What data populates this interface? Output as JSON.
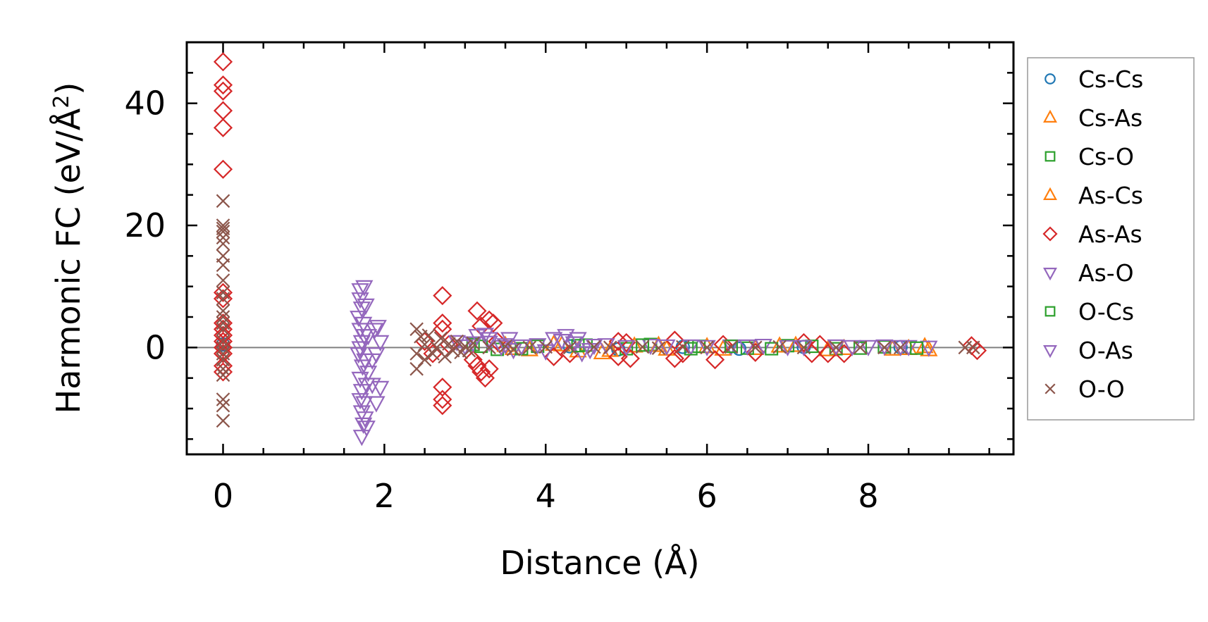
{
  "chart_data": {
    "type": "scatter",
    "title": "",
    "xlabel": "Distance (Å)",
    "ylabel_main": "Harmonic FC (eV/Å",
    "ylabel_sup": "2",
    "ylabel_close": ")",
    "xlim": [
      -0.45,
      9.8
    ],
    "ylim": [
      -17.5,
      50
    ],
    "xticks": [
      0,
      2,
      4,
      6,
      8
    ],
    "xtick_labels": [
      "0",
      "2",
      "4",
      "6",
      "8"
    ],
    "yticks": [
      0,
      20,
      40
    ],
    "ytick_labels": [
      "0",
      "20",
      "40"
    ],
    "x_minor_step": 0.5,
    "y_minor_step": 5,
    "zero_line": true,
    "grid": false,
    "legend_position": "outside-right",
    "series": [
      {
        "name": "Cs-Cs",
        "marker": "circle",
        "color": "#1f77b4",
        "points": [
          [
            0,
            0.5
          ],
          [
            4.3,
            0.2
          ],
          [
            4.9,
            -0.3
          ],
          [
            5.7,
            0.1
          ],
          [
            6.4,
            -0.2
          ],
          [
            7.2,
            0.1
          ],
          [
            8.4,
            0.05
          ]
        ]
      },
      {
        "name": "Cs-As",
        "marker": "triangle-up",
        "color": "#ff7f0e",
        "points": [
          [
            3.5,
            0.3
          ],
          [
            3.8,
            -0.4
          ],
          [
            4.1,
            0.5
          ],
          [
            4.4,
            -0.6
          ],
          [
            4.7,
            -0.9
          ],
          [
            5.1,
            0.2
          ],
          [
            5.5,
            -0.3
          ],
          [
            6.0,
            0.1
          ],
          [
            6.6,
            -0.2
          ],
          [
            7.1,
            0.3
          ],
          [
            7.7,
            -0.2
          ],
          [
            8.3,
            -0.3
          ],
          [
            8.75,
            -0.4
          ]
        ]
      },
      {
        "name": "Cs-O",
        "marker": "square",
        "color": "#2ca02c",
        "points": [
          [
            3.1,
            0.5
          ],
          [
            3.4,
            -0.3
          ],
          [
            3.9,
            0.2
          ],
          [
            4.5,
            0.4
          ],
          [
            5.0,
            -0.2
          ],
          [
            5.3,
            0.5
          ],
          [
            5.9,
            0.2
          ],
          [
            6.5,
            -0.1
          ],
          [
            7.0,
            0.3
          ],
          [
            7.6,
            -0.2
          ],
          [
            8.2,
            0.1
          ]
        ]
      },
      {
        "name": "As-Cs",
        "marker": "triangle-up",
        "color": "#ff7f0e",
        "points": [
          [
            3.6,
            -0.2
          ],
          [
            4.2,
            0.4
          ],
          [
            4.8,
            -0.5
          ],
          [
            5.4,
            0.3
          ],
          [
            6.2,
            -0.3
          ],
          [
            6.9,
            0.2
          ],
          [
            7.5,
            -0.4
          ],
          [
            8.5,
            -0.2
          ],
          [
            8.7,
            0.1
          ]
        ]
      },
      {
        "name": "As-As",
        "marker": "diamond",
        "color": "#d62728",
        "points": [
          [
            0,
            46.8
          ],
          [
            0,
            43
          ],
          [
            0,
            42
          ],
          [
            0,
            38.8
          ],
          [
            0,
            36
          ],
          [
            0,
            29.2
          ],
          [
            0,
            9
          ],
          [
            0,
            8
          ],
          [
            0,
            4
          ],
          [
            0,
            3
          ],
          [
            0,
            2
          ],
          [
            0,
            1
          ],
          [
            0,
            0
          ],
          [
            0,
            -1
          ],
          [
            0,
            -3
          ],
          [
            0,
            -4
          ],
          [
            2.72,
            8.5
          ],
          [
            2.72,
            4
          ],
          [
            2.72,
            3
          ],
          [
            2.72,
            -6.5
          ],
          [
            2.72,
            -8.5
          ],
          [
            2.72,
            -9.5
          ],
          [
            2.5,
            1
          ],
          [
            2.6,
            -1
          ],
          [
            2.8,
            0.5
          ],
          [
            3.15,
            6
          ],
          [
            3.2,
            3.5
          ],
          [
            3.3,
            4.5
          ],
          [
            3.35,
            4
          ],
          [
            3.15,
            -3
          ],
          [
            3.2,
            -4
          ],
          [
            3.25,
            -5
          ],
          [
            3.3,
            -3.5
          ],
          [
            3.1,
            -2
          ],
          [
            3.4,
            1
          ],
          [
            4.1,
            -1.5
          ],
          [
            4.3,
            -1
          ],
          [
            4.9,
            1
          ],
          [
            4.9,
            -1.5
          ],
          [
            5.0,
            0.8
          ],
          [
            5.05,
            -1.8
          ],
          [
            5.6,
            1.2
          ],
          [
            5.6,
            -1.8
          ],
          [
            5.7,
            -1
          ],
          [
            6.1,
            -2
          ],
          [
            6.2,
            0.5
          ],
          [
            6.6,
            -0.8
          ],
          [
            7.2,
            0.8
          ],
          [
            7.3,
            -1
          ],
          [
            7.4,
            0.5
          ],
          [
            7.5,
            -1
          ],
          [
            7.7,
            -1
          ],
          [
            9.28,
            0.3
          ],
          [
            9.35,
            -0.5
          ]
        ]
      },
      {
        "name": "As-O",
        "marker": "triangle-down",
        "color": "#9467bd",
        "points": [
          [
            1.7,
            9.5
          ],
          [
            1.7,
            8
          ],
          [
            1.72,
            6.5
          ],
          [
            1.68,
            5
          ],
          [
            1.74,
            4
          ],
          [
            1.7,
            3
          ],
          [
            1.72,
            1
          ],
          [
            1.7,
            0
          ],
          [
            1.68,
            -1
          ],
          [
            1.73,
            -3
          ],
          [
            1.7,
            -5
          ],
          [
            1.72,
            -7
          ],
          [
            1.7,
            -8.5
          ],
          [
            1.72,
            -10.5
          ],
          [
            1.74,
            -12.5
          ],
          [
            1.72,
            -14.5
          ],
          [
            1.8,
            2
          ],
          [
            1.85,
            -2
          ],
          [
            1.8,
            -4
          ],
          [
            1.85,
            -6
          ],
          [
            1.9,
            -9
          ],
          [
            1.9,
            -1
          ],
          [
            1.88,
            3
          ],
          [
            3.1,
            0.8
          ],
          [
            3.3,
            1.5
          ],
          [
            3.5,
            0.5
          ],
          [
            3.6,
            -0.3
          ],
          [
            3.9,
            0.5
          ],
          [
            4.0,
            -0.5
          ],
          [
            4.2,
            1.2
          ],
          [
            4.35,
            0.8
          ],
          [
            4.45,
            -0.8
          ],
          [
            4.6,
            0.4
          ],
          [
            5.3,
            0.4
          ],
          [
            5.8,
            0.3
          ],
          [
            6.3,
            0.3
          ],
          [
            6.7,
            0.4
          ],
          [
            7.0,
            0.2
          ],
          [
            7.6,
            0.3
          ],
          [
            8.0,
            0.2
          ],
          [
            8.5,
            0.2
          ],
          [
            8.75,
            0.1
          ]
        ]
      },
      {
        "name": "O-Cs",
        "marker": "square",
        "color": "#2ca02c",
        "points": [
          [
            3.2,
            0.2
          ],
          [
            3.7,
            -0.2
          ],
          [
            4.4,
            0.3
          ],
          [
            5.2,
            0.4
          ],
          [
            5.8,
            -0.2
          ],
          [
            6.3,
            0.2
          ],
          [
            6.8,
            -0.2
          ],
          [
            7.3,
            0.2
          ],
          [
            7.9,
            -0.1
          ],
          [
            8.6,
            -0.1
          ]
        ]
      },
      {
        "name": "O-As",
        "marker": "triangle-down",
        "color": "#9467bd",
        "points": [
          [
            1.75,
            10
          ],
          [
            1.77,
            7
          ],
          [
            1.75,
            2
          ],
          [
            1.76,
            -2
          ],
          [
            1.78,
            -6
          ],
          [
            1.75,
            -9
          ],
          [
            1.76,
            -11.5
          ],
          [
            1.78,
            -13
          ],
          [
            1.95,
            -6.5
          ],
          [
            1.95,
            1
          ],
          [
            1.92,
            3.5
          ],
          [
            2.9,
            1
          ],
          [
            3.0,
            0.3
          ],
          [
            3.15,
            2
          ],
          [
            3.25,
            2.2
          ],
          [
            3.3,
            0.9
          ],
          [
            3.45,
            0.2
          ],
          [
            3.55,
            1.5
          ],
          [
            3.7,
            0.3
          ],
          [
            4.1,
            1.5
          ],
          [
            4.25,
            2
          ],
          [
            4.4,
            1.5
          ],
          [
            4.55,
            -0.3
          ],
          [
            4.75,
            0.5
          ],
          [
            5.0,
            0.2
          ],
          [
            5.5,
            0.3
          ],
          [
            6.0,
            0.2
          ],
          [
            6.5,
            0.3
          ],
          [
            7.2,
            0.2
          ],
          [
            7.8,
            0.2
          ],
          [
            8.2,
            0.3
          ],
          [
            8.4,
            0.2
          ]
        ]
      },
      {
        "name": "O-O",
        "marker": "x",
        "color": "#8c564b",
        "points": [
          [
            0,
            24
          ],
          [
            0,
            20
          ],
          [
            0,
            19.5
          ],
          [
            0,
            19
          ],
          [
            0,
            18
          ],
          [
            0,
            17
          ],
          [
            0,
            15
          ],
          [
            0,
            13.5
          ],
          [
            0,
            11
          ],
          [
            0,
            9
          ],
          [
            0,
            8
          ],
          [
            0,
            6
          ],
          [
            0,
            5
          ],
          [
            0,
            4
          ],
          [
            0,
            3
          ],
          [
            0,
            1
          ],
          [
            0,
            0
          ],
          [
            0,
            -1
          ],
          [
            0,
            -2
          ],
          [
            0,
            -3.5
          ],
          [
            0,
            -4.5
          ],
          [
            0,
            -8.5
          ],
          [
            0,
            -9.5
          ],
          [
            0,
            -12
          ],
          [
            2.4,
            3
          ],
          [
            2.4,
            -1
          ],
          [
            2.4,
            -3.5
          ],
          [
            2.45,
            1.8
          ],
          [
            2.5,
            0.5
          ],
          [
            2.5,
            -2
          ],
          [
            2.55,
            2
          ],
          [
            2.6,
            -1
          ],
          [
            2.65,
            0
          ],
          [
            2.7,
            1.5
          ],
          [
            2.75,
            -1.5
          ],
          [
            2.8,
            0.6
          ],
          [
            2.85,
            -0.5
          ],
          [
            2.9,
            1
          ],
          [
            2.95,
            -0.8
          ],
          [
            3.0,
            0.2
          ],
          [
            3.05,
            -0.5
          ],
          [
            3.1,
            0.7
          ],
          [
            3.3,
            0
          ],
          [
            3.5,
            0.2
          ],
          [
            3.6,
            -0.3
          ],
          [
            3.8,
            0
          ],
          [
            4.0,
            0.1
          ],
          [
            4.3,
            0
          ],
          [
            4.6,
            0.1
          ],
          [
            4.8,
            0
          ],
          [
            5.2,
            0.1
          ],
          [
            5.4,
            -0.1
          ],
          [
            5.7,
            0.1
          ],
          [
            6.0,
            0
          ],
          [
            6.3,
            0.1
          ],
          [
            6.6,
            0
          ],
          [
            6.9,
            0.1
          ],
          [
            7.2,
            0
          ],
          [
            7.6,
            0
          ],
          [
            7.9,
            0
          ],
          [
            8.2,
            0
          ],
          [
            8.4,
            0
          ],
          [
            9.2,
            0
          ],
          [
            9.3,
            0
          ]
        ]
      }
    ]
  }
}
